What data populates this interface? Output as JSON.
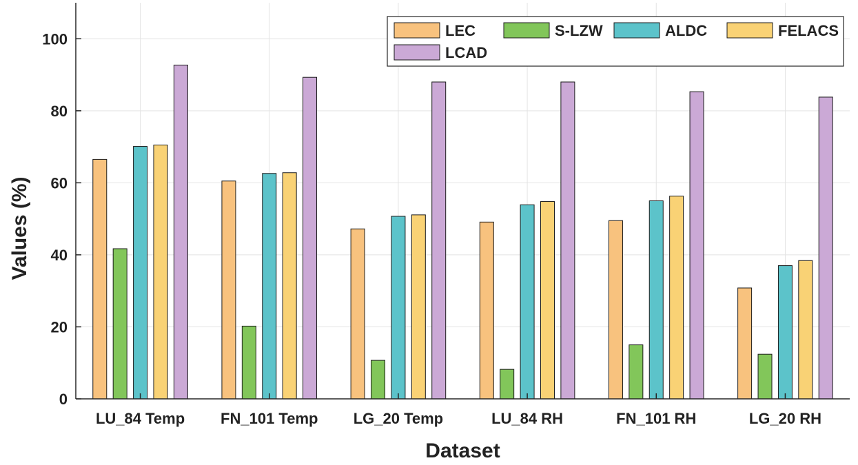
{
  "chart_data": {
    "type": "bar",
    "title": "",
    "xlabel": "Dataset",
    "ylabel": "Values (%)",
    "ylim": [
      0,
      110
    ],
    "yticks": [
      0,
      20,
      40,
      60,
      80,
      100
    ],
    "grid": true,
    "legend_position": "top-right",
    "categories": [
      "LU_84 Temp",
      "FN_101 Temp",
      "LG_20 Temp",
      "LU_84 RH",
      "FN_101 RH",
      "LG_20 RH"
    ],
    "series": [
      {
        "name": "LEC",
        "color": "#F8C27E",
        "values": [
          66.5,
          60.5,
          47.2,
          49.1,
          49.5,
          30.8
        ]
      },
      {
        "name": "S-LZW",
        "color": "#82C65A",
        "values": [
          41.7,
          20.2,
          10.7,
          8.2,
          15.0,
          12.4
        ]
      },
      {
        "name": "ALDC",
        "color": "#5CC3CA",
        "values": [
          70.1,
          62.6,
          50.7,
          53.9,
          55.0,
          37.0
        ]
      },
      {
        "name": "FELACS",
        "color": "#F9D275",
        "values": [
          70.5,
          62.8,
          51.1,
          54.8,
          56.3,
          38.4
        ]
      },
      {
        "name": "LCAD",
        "color": "#CBA9D6",
        "values": [
          92.7,
          89.3,
          88.0,
          88.0,
          85.3,
          83.8
        ]
      }
    ]
  }
}
